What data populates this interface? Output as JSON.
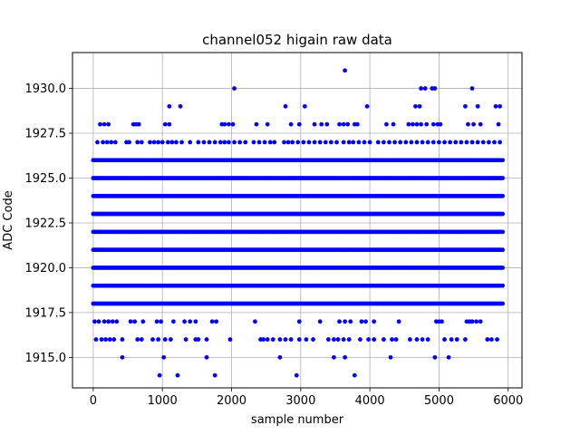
{
  "chart_data": {
    "type": "scatter",
    "title": "channel052 higain raw data",
    "xlabel": "sample number",
    "ylabel": "ADC Code",
    "xlim": [
      -300,
      6200
    ],
    "ylim": [
      1913.3,
      1932.0
    ],
    "xticks": [
      0,
      1000,
      2000,
      3000,
      4000,
      5000,
      6000
    ],
    "xtick_labels": [
      "0",
      "1000",
      "2000",
      "3000",
      "4000",
      "5000",
      "6000"
    ],
    "yticks": [
      1915.0,
      1917.5,
      1920.0,
      1922.5,
      1925.0,
      1927.5,
      1930.0
    ],
    "ytick_labels": [
      "1915.0",
      "1917.5",
      "1920.0",
      "1922.5",
      "1925.0",
      "1927.5",
      "1930.0"
    ],
    "grid": true,
    "marker_color": "#0000ff",
    "sample_range": [
      0,
      5920
    ],
    "dense_levels": [
      1918,
      1919,
      1920,
      1921,
      1922,
      1923,
      1924,
      1925,
      1926
    ],
    "sparse_points": [
      {
        "y": 1927,
        "x": [
          60,
          140,
          200,
          260,
          320,
          480,
          520,
          640,
          700,
          820,
          880,
          940,
          1000,
          1080,
          1140,
          1200,
          1280,
          1400,
          1520,
          1600,
          1680,
          1760,
          1840,
          1900,
          1960,
          2040,
          2120,
          2200,
          2320,
          2400,
          2480,
          2560,
          2620,
          2760,
          2820,
          2880,
          2960,
          3040,
          3120,
          3200,
          3280,
          3360,
          3440,
          3520,
          3620,
          3700,
          3760,
          3840,
          3920,
          4000,
          4120,
          4200,
          4280,
          4360,
          4440,
          4520,
          4600,
          4680,
          4760,
          4840,
          4920,
          5000,
          5080,
          5160,
          5240,
          5320,
          5400,
          5480,
          5560,
          5640,
          5720,
          5800,
          5880
        ]
      },
      {
        "y": 1928,
        "x": [
          100,
          160,
          220,
          580,
          620,
          660,
          1040,
          1100,
          1860,
          1900,
          1960,
          2020,
          2360,
          2520,
          2860,
          2980,
          3200,
          3300,
          3380,
          3560,
          3620,
          3680,
          3780,
          3820,
          4240,
          4340,
          4560,
          4620,
          4680,
          4740,
          4820,
          4920,
          4980,
          5020,
          5420,
          5500,
          5600,
          5860
        ]
      },
      {
        "y": 1929,
        "x": [
          1100,
          1260,
          2780,
          3060,
          3960,
          4660,
          4720,
          5380,
          5560,
          5820,
          5880
        ]
      },
      {
        "y": 1930,
        "x": [
          2040,
          4740,
          4800,
          4900,
          4940,
          5480
        ]
      },
      {
        "y": 1931,
        "x": [
          3640
        ]
      },
      {
        "y": 1917,
        "x": [
          20,
          80,
          160,
          220,
          280,
          340,
          540,
          600,
          720,
          920,
          980,
          1160,
          1320,
          1400,
          1480,
          1720,
          1780,
          2340,
          2980,
          3280,
          3560,
          3640,
          3720,
          3880,
          3940,
          4060,
          4420,
          4960,
          5000,
          5040,
          5400,
          5440,
          5480,
          5540,
          5600
        ]
      },
      {
        "y": 1916,
        "x": [
          40,
          120,
          180,
          240,
          300,
          420,
          640,
          700,
          860,
          940,
          1040,
          1120,
          1340,
          1480,
          1520,
          1640,
          1980,
          2420,
          2460,
          2520,
          2600,
          2700,
          2780,
          2860,
          2980,
          3080,
          3180,
          3400,
          3480,
          3540,
          3620,
          3700,
          3860,
          3980,
          4060,
          4200,
          4320,
          4380,
          4580,
          4680,
          4760,
          4840,
          5080,
          5180,
          5260,
          5380,
          5700,
          5760,
          5840
        ]
      },
      {
        "y": 1915,
        "x": [
          420,
          1020,
          1640,
          2700,
          3480,
          3640,
          4300,
          4940,
          5140
        ]
      },
      {
        "y": 1914,
        "x": [
          960,
          1220,
          1760,
          2940,
          3780
        ]
      }
    ]
  }
}
